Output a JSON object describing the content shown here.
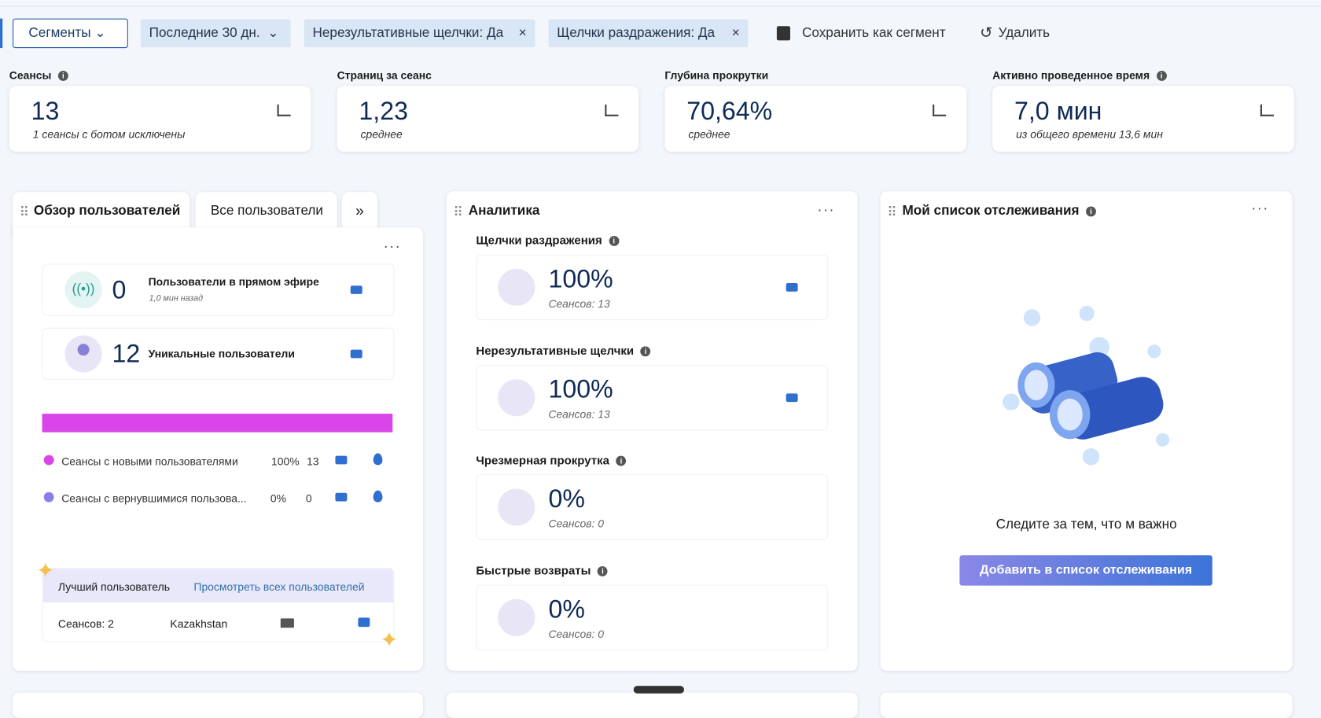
{
  "toolbar": {
    "segments": "Сегменты",
    "date_range": "Последние 30 дн.",
    "filters": [
      "Нерезультативные щелчки: Да",
      "Щелчки раздражения: Да"
    ],
    "save": "Сохранить как сегмент",
    "delete": "Удалить"
  },
  "kpis": [
    {
      "label": "Сеансы",
      "value": "13",
      "note": "1 сеансы с ботом исключены"
    },
    {
      "label": "Страниц за сеанс",
      "value": "1,23",
      "note": "среднее"
    },
    {
      "label": "Глубина прокрутки",
      "value": "70,64%",
      "note": "среднее"
    },
    {
      "label": "Активно проведенное время",
      "value": "7,0 мин",
      "note": "из общего времени 13,6 мин"
    }
  ],
  "users_panel": {
    "tabs": [
      "Обзор пользователей",
      "Все пользователи"
    ],
    "live": {
      "value": "0",
      "label": "Пользователи в прямом эфире",
      "note": "1,0 мин назад"
    },
    "unique": {
      "value": "12",
      "label": "Уникальные пользователи"
    },
    "sessions": [
      {
        "label": "Сеансы с новыми пользователями",
        "percent": "100%",
        "count": "13"
      },
      {
        "label": "Сеансы с вернувшимися пользова...",
        "percent": "0%",
        "count": "0"
      }
    ],
    "top_user": {
      "title": "Лучший пользователь",
      "link": "Просмотреть всех пользователей",
      "sessions": "Сеансов: 2",
      "country": "Kazakhstan"
    }
  },
  "analytics": {
    "title": "Аналитика",
    "metrics": [
      {
        "title": "Щелчки раздражения",
        "value": "100%",
        "note": "Сеансов: 13"
      },
      {
        "title": "Нерезультативные щелчки",
        "value": "100%",
        "note": "Сеансов: 13"
      },
      {
        "title": "Чрезмерная прокрутка",
        "value": "0%",
        "note": "Сеансов: 0"
      },
      {
        "title": "Быстрые возвраты",
        "value": "0%",
        "note": "Сеансов: 0"
      }
    ]
  },
  "watchlist": {
    "title": "Мой список отслеживания",
    "message": "Следите за тем, что м важно",
    "button": "Добавить в список отслеживания"
  }
}
